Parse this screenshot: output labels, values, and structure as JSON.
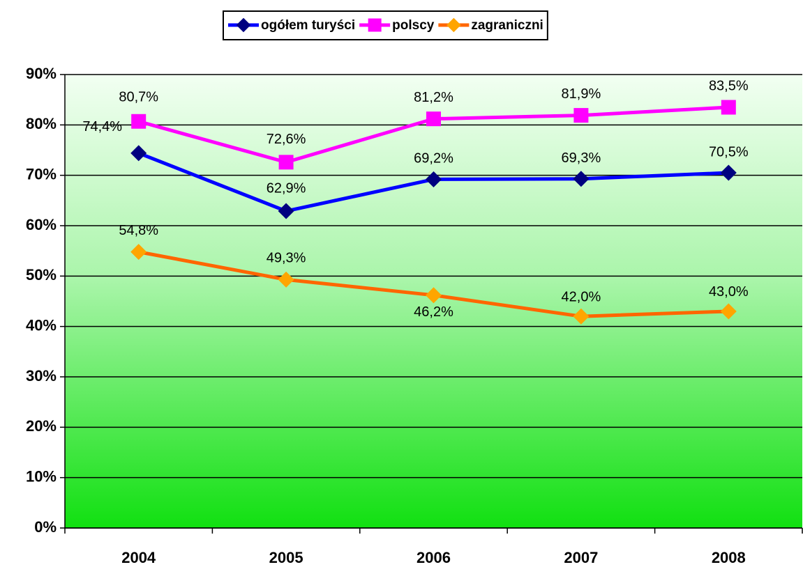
{
  "chart_data": {
    "type": "line",
    "categories": [
      "2004",
      "2005",
      "2006",
      "2007",
      "2008"
    ],
    "series": [
      {
        "name": "ogółem turyści",
        "color": "#0000ff",
        "marker_color": "#000080",
        "marker": "diamond",
        "values": [
          74.4,
          62.9,
          69.2,
          69.3,
          70.5
        ],
        "value_labels": [
          "74,4%",
          "62,9%",
          "69,2%",
          "69,3%",
          "70,5%"
        ]
      },
      {
        "name": "polscy",
        "color": "#ff00ff",
        "marker_color": "#ff00ff",
        "marker": "square",
        "values": [
          80.7,
          72.6,
          81.2,
          81.9,
          83.5
        ],
        "value_labels": [
          "80,7%",
          "72,6%",
          "81,2%",
          "81,9%",
          "83,5%"
        ]
      },
      {
        "name": "zagraniczni",
        "color": "#ff6600",
        "marker_color": "#ffa500",
        "marker": "diamond",
        "values": [
          54.8,
          49.3,
          46.2,
          42.0,
          43.0
        ],
        "value_labels": [
          "54,8%",
          "49,3%",
          "46,2%",
          "42,0%",
          "43,0%"
        ]
      }
    ],
    "ylim": [
      0,
      90
    ],
    "yticks": [
      {
        "value": 0,
        "label": "0%"
      },
      {
        "value": 10,
        "label": "10%"
      },
      {
        "value": 20,
        "label": "20%"
      },
      {
        "value": 30,
        "label": "30%"
      },
      {
        "value": 40,
        "label": "40%"
      },
      {
        "value": 50,
        "label": "50%"
      },
      {
        "value": 60,
        "label": "60%"
      },
      {
        "value": 70,
        "label": "70%"
      },
      {
        "value": 80,
        "label": "80%"
      },
      {
        "value": 90,
        "label": "90%"
      }
    ],
    "grid": true,
    "legend": "top"
  }
}
